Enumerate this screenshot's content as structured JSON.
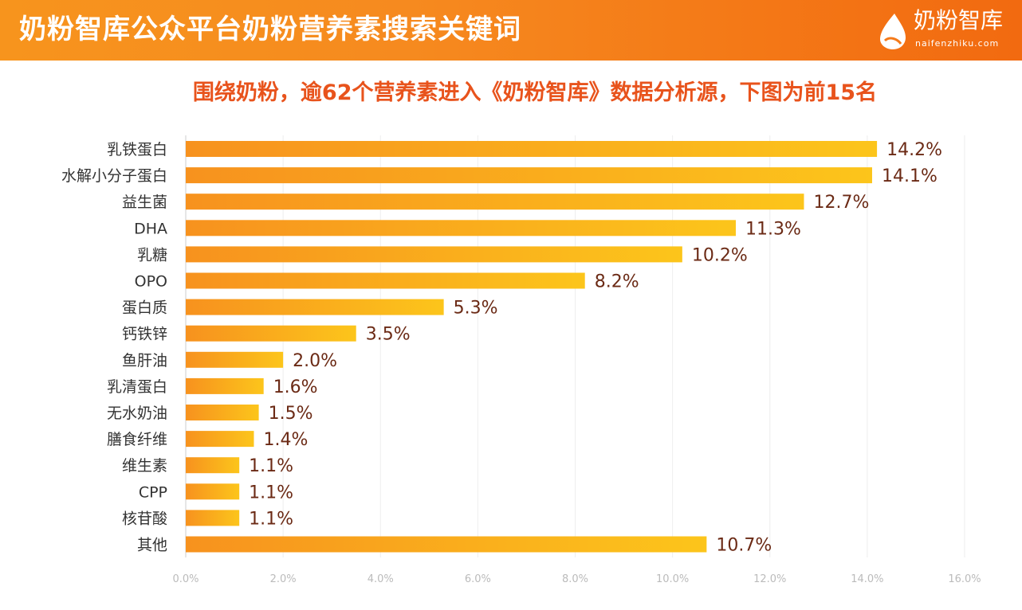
{
  "header": {
    "title": "奶粉智库公众平台奶粉营养素搜索关键词"
  },
  "logo": {
    "name": "奶粉智库",
    "url": "naifenzhiku.com"
  },
  "colors": {
    "header": "#f68a1f",
    "bar_start": "#f7921e",
    "bar_end": "#fcc51b",
    "subtitle": "#e8531c",
    "value_label": "#6b2a15"
  },
  "subtitle": "围绕奶粉，逾62个营养素进入《奶粉智库》数据分析源，下图为前15名",
  "chart_data": {
    "type": "bar",
    "orientation": "horizontal",
    "categories": [
      "乳铁蛋白",
      "水解小分子蛋白",
      "益生菌",
      "DHA",
      "乳糖",
      "OPO",
      "蛋白质",
      "钙铁锌",
      "鱼肝油",
      "乳清蛋白",
      "无水奶油",
      "膳食纤维",
      "维生素",
      "CPP",
      "核苷酸",
      "其他"
    ],
    "values": [
      14.2,
      14.1,
      12.7,
      11.3,
      10.2,
      8.2,
      5.3,
      3.5,
      2.0,
      1.6,
      1.5,
      1.4,
      1.1,
      1.1,
      1.1,
      10.7
    ],
    "value_labels": [
      "14.2%",
      "14.1%",
      "12.7%",
      "11.3%",
      "10.2%",
      "8.2%",
      "5.3%",
      "3.5%",
      "2.0%",
      "1.6%",
      "1.5%",
      "1.4%",
      "1.1%",
      "1.1%",
      "1.1%",
      "10.7%"
    ],
    "xlim": [
      0,
      16
    ],
    "xticks": [
      "0.0%",
      "2.0%",
      "4.0%",
      "6.0%",
      "8.0%",
      "10.0%",
      "12.0%",
      "14.0%",
      "16.0%"
    ],
    "grid": true,
    "title": "",
    "xlabel": "",
    "ylabel": ""
  }
}
